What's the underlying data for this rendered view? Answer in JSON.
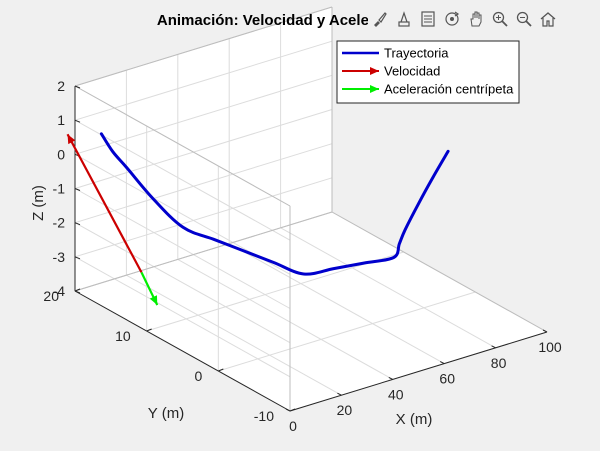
{
  "toolbar": {
    "icons": [
      "brush-icon",
      "data-tip-icon",
      "legend-icon",
      "rotate-3d-icon",
      "pan-icon",
      "zoom-in-icon",
      "zoom-out-icon",
      "home-icon"
    ]
  },
  "chart_data": {
    "type": "line",
    "title": "Animación: Velocidad y Acelera",
    "xlabel": "X (m)",
    "ylabel": "Y (m)",
    "zlabel": "Z (m)",
    "xlim": [
      0,
      100
    ],
    "ylim": [
      -10,
      20
    ],
    "zlim": [
      -4,
      2
    ],
    "xticks": [
      "0",
      "20",
      "40",
      "60",
      "80",
      "100"
    ],
    "yticks": [
      "-10",
      "0",
      "10",
      "20"
    ],
    "zticks": [
      "-4",
      "-3",
      "-2",
      "-1",
      "0",
      "1",
      "2"
    ],
    "grid": true,
    "legend_position": "top-right",
    "legend": [
      {
        "label": "Trayectoria",
        "color": "#0000cc",
        "style": "line"
      },
      {
        "label": "Velocidad",
        "color": "#cc0000",
        "style": "arrow"
      },
      {
        "label": "Aceleración centrípeta",
        "color": "#00ee00",
        "style": "arrow"
      }
    ],
    "series": [
      {
        "name": "Trayectoria",
        "color": "#0000cc",
        "points": [
          [
            95,
            2,
            0
          ],
          [
            95,
            4.1,
            -1
          ],
          [
            95,
            6.1,
            -2
          ],
          [
            95,
            8,
            -3
          ],
          [
            95,
            8.8,
            -3.5
          ],
          [
            95,
            9.6,
            -4
          ],
          [
            85,
            10.2,
            -4
          ],
          [
            75,
            10.8,
            -4
          ],
          [
            65,
            11.4,
            -4
          ],
          [
            55,
            12,
            -3.5
          ],
          [
            45,
            12.6,
            -3
          ],
          [
            35,
            13.2,
            -2.5
          ],
          [
            25,
            13.9,
            -2
          ],
          [
            15,
            14.5,
            -1
          ],
          [
            7,
            15.3,
            0
          ],
          [
            3,
            15.8,
            0.5
          ],
          [
            0.5,
            16.5,
            1
          ]
        ]
      }
    ],
    "vectors": [
      {
        "name": "Velocidad",
        "color": "#cc0000",
        "tail": [
          0.5,
          10.9,
          -2.4
        ],
        "head": [
          1,
          21.4,
          0.4
        ]
      },
      {
        "name": "Aceleración centrípeta",
        "color": "#00ee00",
        "tail": [
          0.5,
          10.9,
          -2.4
        ],
        "head": [
          0.5,
          8.7,
          -3.1
        ]
      }
    ],
    "view": {
      "azimuth": -37.5,
      "elevation": 30
    }
  }
}
